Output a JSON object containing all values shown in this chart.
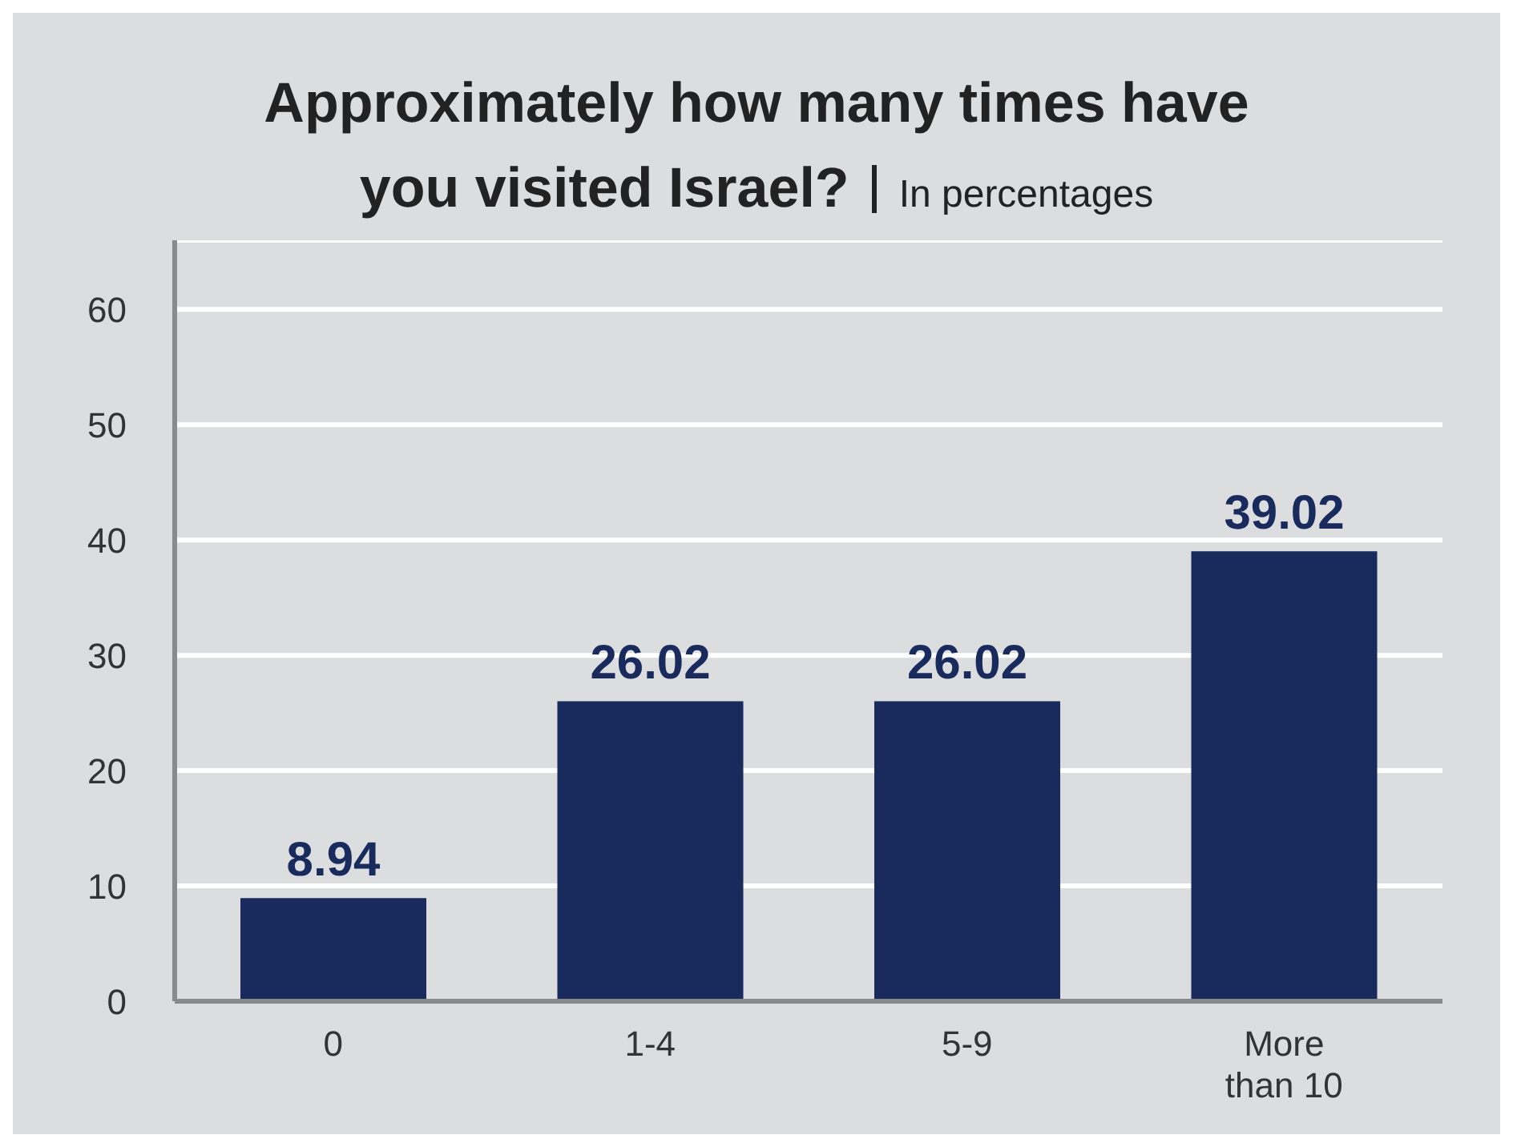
{
  "chart_data": {
    "type": "bar",
    "title": "Approximately how many times have you visited Israel?",
    "subtitle": "In percentages",
    "categories": [
      "0",
      "1-4",
      "5-9",
      "More than 10"
    ],
    "values": [
      8.94,
      26.02,
      26.02,
      39.02
    ],
    "color": "#182b5c",
    "ylim": [
      0,
      66
    ],
    "yticks": [
      0,
      10,
      20,
      30,
      40,
      50,
      60
    ],
    "grid": "y",
    "data_labels": true
  }
}
